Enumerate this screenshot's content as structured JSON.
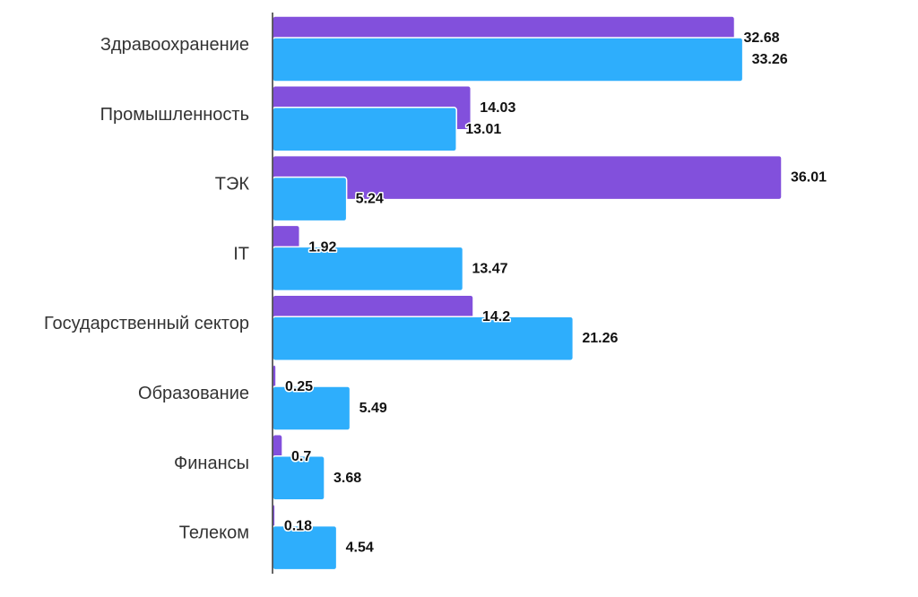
{
  "chart_data": {
    "type": "bar",
    "orientation": "horizontal",
    "categories": [
      "Здравоохранение",
      "Промышленность",
      "ТЭК",
      "IT",
      "Государственный сектор",
      "Образование",
      "Финансы",
      "Телеком"
    ],
    "series": [
      {
        "color": "#8250dc",
        "values": [
          32.68,
          14.03,
          36.01,
          1.92,
          14.2,
          0.25,
          0.7,
          0.18
        ],
        "labels": [
          "32.68",
          "14.03",
          "36.01",
          "1.92",
          "14.2",
          "0.25",
          "0.7",
          "0.18"
        ]
      },
      {
        "color": "#2eaefc",
        "values": [
          33.26,
          13.01,
          5.24,
          13.47,
          21.26,
          5.49,
          3.68,
          4.54
        ],
        "labels": [
          "33.26",
          "13.01",
          "5.24",
          "13.47",
          "21.26",
          "5.49",
          "3.68",
          "4.54"
        ]
      }
    ],
    "xlim": [
      0,
      36.01
    ],
    "grid": false,
    "legend": "none"
  }
}
